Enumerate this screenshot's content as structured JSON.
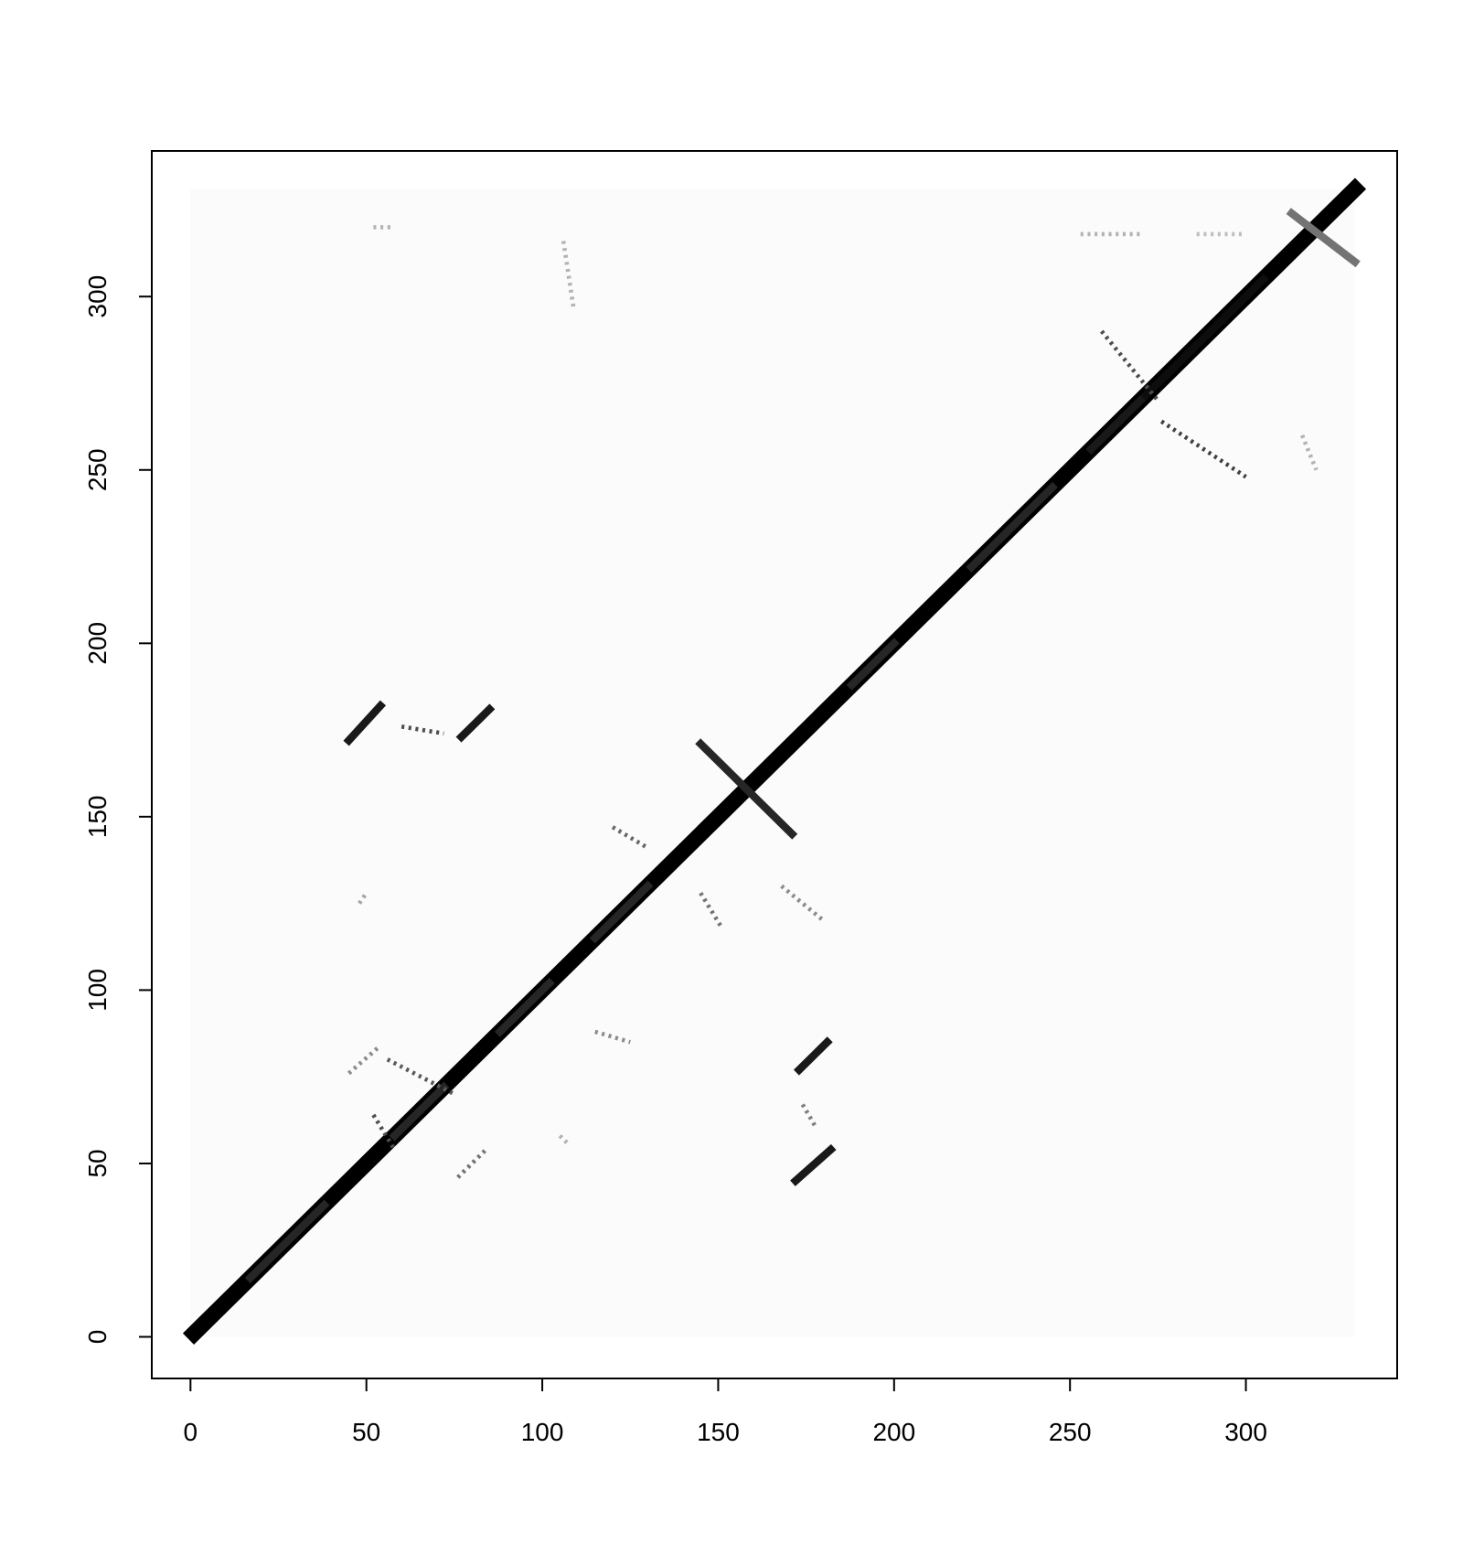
{
  "chart_data": {
    "type": "heatmap",
    "title": "",
    "xlabel": "",
    "ylabel": "",
    "xlim": [
      -11,
      343
    ],
    "ylim": [
      -12,
      342
    ],
    "data_extent": [
      0,
      331
    ],
    "xticks": [
      0,
      50,
      100,
      150,
      200,
      250,
      300
    ],
    "yticks": [
      0,
      50,
      100,
      150,
      200,
      250,
      300
    ],
    "colormap": "white-to-black (higher value = darker)",
    "grid": false,
    "legend": "none",
    "description_of_values": "Symmetric contact-map-like matrix, values 0-1; strong main diagonal plus off-diagonal bands",
    "diagonal_band": {
      "value": 1.0,
      "half_width": 2
    },
    "segments": [
      {
        "x0": 45,
        "y0": 172,
        "x1": 54,
        "y1": 182,
        "value": 0.9
      },
      {
        "x0": 77,
        "y0": 173,
        "x1": 85,
        "y1": 181,
        "value": 0.9
      },
      {
        "x0": 172,
        "y0": 45,
        "x1": 182,
        "y1": 54,
        "value": 0.9
      },
      {
        "x0": 173,
        "y0": 77,
        "x1": 181,
        "y1": 85,
        "value": 0.9
      },
      {
        "x0": 145,
        "y0": 171,
        "x1": 171,
        "y1": 145,
        "value": 0.85
      },
      {
        "x0": 313,
        "y0": 324,
        "x1": 331,
        "y1": 310,
        "value": 0.55
      },
      {
        "x0": 271,
        "y0": 271,
        "x1": 305,
        "y1": 305,
        "value": 0.95
      },
      {
        "x0": 256,
        "y0": 256,
        "x1": 270,
        "y1": 270,
        "value": 0.9
      },
      {
        "x0": 222,
        "y0": 222,
        "x1": 245,
        "y1": 245,
        "value": 0.85
      },
      {
        "x0": 88,
        "y0": 88,
        "x1": 102,
        "y1": 102,
        "value": 0.85
      },
      {
        "x0": 115,
        "y0": 115,
        "x1": 130,
        "y1": 130,
        "value": 0.85
      },
      {
        "x0": 58,
        "y0": 58,
        "x1": 72,
        "y1": 72,
        "value": 0.85
      },
      {
        "x0": 17,
        "y0": 17,
        "x1": 38,
        "y1": 38,
        "value": 0.85
      },
      {
        "x0": 188,
        "y0": 188,
        "x1": 200,
        "y1": 200,
        "value": 0.85
      }
    ],
    "dotted_segments": [
      {
        "x0": 60,
        "y0": 176,
        "x1": 72,
        "y1": 174,
        "value": 0.7
      },
      {
        "x0": 259,
        "y0": 290,
        "x1": 275,
        "y1": 270,
        "value": 0.7
      },
      {
        "x0": 276,
        "y0": 264,
        "x1": 300,
        "y1": 248,
        "value": 0.75
      },
      {
        "x0": 52,
        "y0": 64,
        "x1": 58,
        "y1": 54,
        "value": 0.7
      },
      {
        "x0": 56,
        "y0": 80,
        "x1": 75,
        "y1": 70,
        "value": 0.65
      },
      {
        "x0": 120,
        "y0": 147,
        "x1": 130,
        "y1": 141,
        "value": 0.6
      },
      {
        "x0": 145,
        "y0": 128,
        "x1": 151,
        "y1": 118,
        "value": 0.55
      },
      {
        "x0": 174,
        "y0": 67,
        "x1": 178,
        "y1": 60,
        "value": 0.5
      },
      {
        "x0": 115,
        "y0": 88,
        "x1": 125,
        "y1": 85,
        "value": 0.45
      },
      {
        "x0": 48,
        "y0": 125,
        "x1": 50,
        "y1": 128,
        "value": 0.35
      },
      {
        "x0": 168,
        "y0": 130,
        "x1": 180,
        "y1": 120,
        "value": 0.45
      },
      {
        "x0": 76,
        "y0": 46,
        "x1": 84,
        "y1": 54,
        "value": 0.55
      },
      {
        "x0": 45,
        "y0": 76,
        "x1": 54,
        "y1": 84,
        "value": 0.45
      },
      {
        "x0": 105,
        "y0": 58,
        "x1": 107,
        "y1": 56,
        "value": 0.3
      },
      {
        "x0": 106,
        "y0": 316,
        "x1": 109,
        "y1": 296,
        "value": 0.3
      },
      {
        "x0": 52,
        "y0": 320,
        "x1": 58,
        "y1": 320,
        "value": 0.3
      },
      {
        "x0": 253,
        "y0": 318,
        "x1": 270,
        "y1": 318,
        "value": 0.3
      },
      {
        "x0": 286,
        "y0": 318,
        "x1": 300,
        "y1": 318,
        "value": 0.25
      },
      {
        "x0": 316,
        "y0": 260,
        "x1": 320,
        "y1": 250,
        "value": 0.3
      }
    ]
  }
}
